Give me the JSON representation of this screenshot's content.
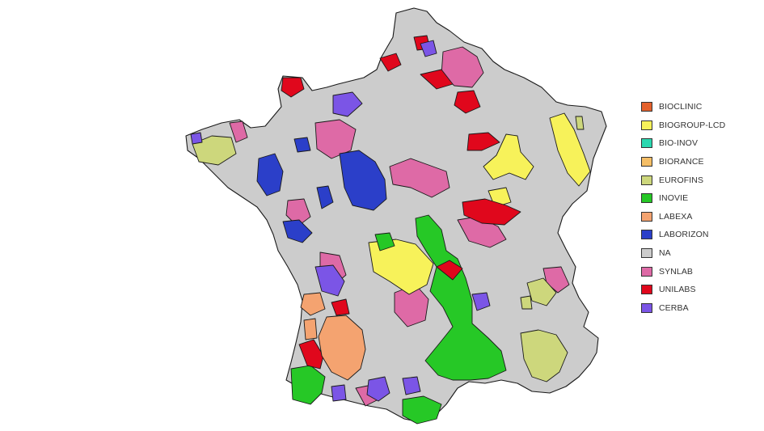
{
  "legend": {
    "items": [
      {
        "label": "BIOCLINIC",
        "color": "#e4612c"
      },
      {
        "label": "BIOGROUP-LCD",
        "color": "#f7f25a"
      },
      {
        "label": "BIO-INOV",
        "color": "#2ad8b0"
      },
      {
        "label": "BIORANCE",
        "color": "#f5be66"
      },
      {
        "label": "EUROFINS",
        "color": "#cdd77c"
      },
      {
        "label": "INOVIE",
        "color": "#26c826"
      },
      {
        "label": "LABEXA",
        "color": "#f4a370"
      },
      {
        "label": "LABORIZON",
        "color": "#2b3fc9"
      },
      {
        "label": "NA",
        "color": "#cccccc"
      },
      {
        "label": "SYNLAB",
        "color": "#de6aa6"
      },
      {
        "label": "UNILABS",
        "color": "#e0071c"
      },
      {
        "label": "CERBA",
        "color": "#7b55e6"
      }
    ]
  }
}
